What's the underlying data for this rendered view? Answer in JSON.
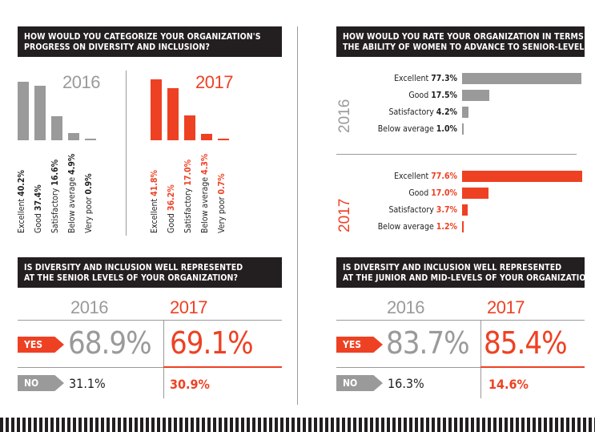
{
  "colors": {
    "grey": "#9a9a9a",
    "red": "#ee4123",
    "dark": "#231f20"
  },
  "q1": {
    "title_line1": "HOW WOULD YOU CATEGORIZE YOUR ORGANIZATION'S",
    "title_line2": "PROGRESS ON DIVERSITY AND INCLUSION?",
    "year_2016": "2016",
    "year_2017": "2017"
  },
  "q2": {
    "title_line1": "HOW WOULD YOU RATE YOUR ORGANIZATION IN TERMS OF",
    "title_line2": "THE ABILITY OF WOMEN TO ADVANCE TO SENIOR-LEVEL ROLES?",
    "year_2016": "2016",
    "year_2017": "2017"
  },
  "q3": {
    "title_line1": "IS DIVERSITY AND INCLUSION WELL REPRESENTED",
    "title_line2": "AT THE SENIOR LEVELS OF YOUR ORGANIZATION?",
    "year_2016": "2016",
    "year_2017": "2017",
    "yes_label": "YES",
    "no_label": "NO",
    "yes_2016": "68.9%",
    "yes_2017": "69.1%",
    "no_2016": "31.1%",
    "no_2017": "30.9%"
  },
  "q4": {
    "title_line1": "IS DIVERSITY AND INCLUSION WELL REPRESENTED",
    "title_line2": "AT THE JUNIOR AND MID-LEVELS OF YOUR ORGANIZATION?",
    "year_2016": "2016",
    "year_2017": "2017",
    "yes_label": "YES",
    "no_label": "NO",
    "yes_2016": "83.7%",
    "yes_2017": "85.4%",
    "no_2016": "16.3%",
    "no_2017": "14.6%"
  },
  "chart_data": [
    {
      "type": "bar",
      "title": "HOW WOULD YOU CATEGORIZE YOUR ORGANIZATION'S PROGRESS ON DIVERSITY AND INCLUSION?",
      "categories": [
        "Excellent",
        "Good",
        "Satisfactory",
        "Below average",
        "Very poor"
      ],
      "series": [
        {
          "name": "2016",
          "values": [
            40.2,
            37.4,
            16.6,
            4.9,
            0.9
          ],
          "labels": [
            "40.2%",
            "37.4%",
            "16.6%",
            "4.9%",
            "0.9%"
          ]
        },
        {
          "name": "2017",
          "values": [
            41.8,
            36.2,
            17.0,
            4.3,
            0.7
          ],
          "labels": [
            "41.8%",
            "36.2%",
            "17.0%",
            "4.3%",
            "0.7%"
          ]
        }
      ]
    },
    {
      "type": "bar",
      "orientation": "horizontal",
      "title": "HOW WOULD YOU RATE YOUR ORGANIZATION IN TERMS OF THE ABILITY OF WOMEN TO ADVANCE TO SENIOR-LEVEL ROLES?",
      "categories": [
        "Excellent",
        "Good",
        "Satisfactory",
        "Below average"
      ],
      "series": [
        {
          "name": "2016",
          "values": [
            77.3,
            17.5,
            4.2,
            1.0
          ],
          "labels": [
            "77.3%",
            "17.5%",
            "4.2%",
            "1.0%"
          ]
        },
        {
          "name": "2017",
          "values": [
            77.6,
            17.0,
            3.7,
            1.2
          ],
          "labels": [
            "77.6%",
            "17.0%",
            "3.7%",
            "1.2%"
          ]
        }
      ]
    },
    {
      "type": "table",
      "title": "IS DIVERSITY AND INCLUSION WELL REPRESENTED AT THE SENIOR LEVELS OF YOUR ORGANIZATION?",
      "categories": [
        "YES",
        "NO"
      ],
      "series": [
        {
          "name": "2016",
          "values": [
            68.9,
            31.1
          ]
        },
        {
          "name": "2017",
          "values": [
            69.1,
            30.9
          ]
        }
      ]
    },
    {
      "type": "table",
      "title": "IS DIVERSITY AND INCLUSION WELL REPRESENTED AT THE JUNIOR AND MID-LEVELS OF YOUR ORGANIZATION?",
      "categories": [
        "YES",
        "NO"
      ],
      "series": [
        {
          "name": "2016",
          "values": [
            83.7,
            16.3
          ]
        },
        {
          "name": "2017",
          "values": [
            85.4,
            14.6
          ]
        }
      ]
    }
  ]
}
